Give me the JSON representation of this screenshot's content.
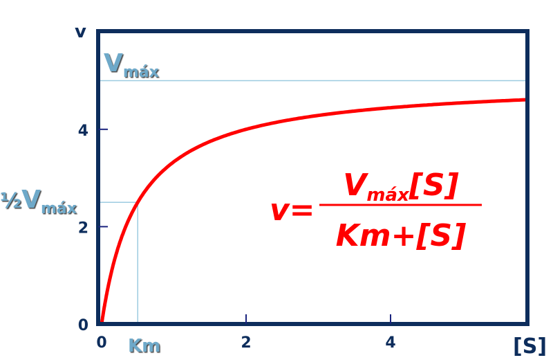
{
  "chart_data": {
    "type": "line",
    "title": "",
    "xlabel": "[S]",
    "ylabel": "v",
    "xlim": [
      -0.05,
      5.9
    ],
    "ylim": [
      0,
      6
    ],
    "x_ticks": [
      0,
      2,
      4
    ],
    "x_tick_labels": [
      "0",
      "2",
      "4"
    ],
    "y_ticks": [
      0,
      2,
      4
    ],
    "y_tick_labels": [
      "0",
      "2",
      "4"
    ],
    "grid": false,
    "legend": "none",
    "series": [
      {
        "equation": "v = Vmax*[S]/(Km+[S])",
        "vmax": 5,
        "km": 0.5,
        "x_range": [
          0,
          5.9
        ],
        "color": "#ff0000"
      }
    ],
    "reference_lines": {
      "vmax": {
        "value": 5,
        "label_main": "V",
        "label_sub": "máx"
      },
      "half_vmax": {
        "value": 2.5,
        "label_prefix": "½",
        "label_main": "V",
        "label_sub": "máx"
      },
      "km": {
        "value": 0.5,
        "label": "Km"
      },
      "color": "#9ccbe0",
      "label_color": "#6ea9c9"
    },
    "annotation": {
      "lhs": "v=",
      "numerator_main": "V",
      "numerator_sub": "máx",
      "numerator_tail": "[S]",
      "denominator": "Km+[S]",
      "color": "#ff0000"
    },
    "frame_color": "#0d2d5c"
  }
}
